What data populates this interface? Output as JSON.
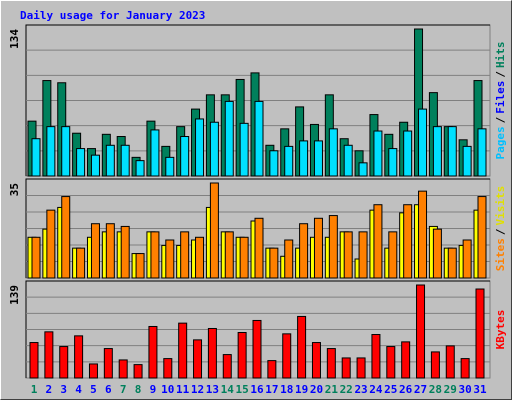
{
  "chart_data": [
    {
      "type": "bar",
      "title": "Daily usage for January 2023",
      "ylim": [
        0,
        134
      ],
      "yticks": [
        134
      ],
      "side_label": [
        {
          "text": "Pages",
          "color": "#00c0ff"
        },
        {
          "text": "/",
          "color": "#000000"
        },
        {
          "text": "Files",
          "color": "#0000ff"
        },
        {
          "text": "/",
          "color": "#000000"
        },
        {
          "text": "Hits",
          "color": "#00805c"
        }
      ],
      "series": [
        {
          "color": "#00805c",
          "values": [
            50,
            87,
            85,
            39,
            25,
            38,
            36,
            17,
            50,
            27,
            45,
            61,
            74,
            74,
            88,
            94,
            28,
            43,
            63,
            47,
            74,
            34,
            23,
            56,
            38,
            49,
            134,
            76,
            45,
            33,
            87
          ]
        },
        {
          "color": "#00e0ff",
          "values": [
            34,
            45,
            45,
            25,
            19,
            28,
            28,
            14,
            42,
            17,
            36,
            52,
            49,
            68,
            48,
            68,
            23,
            27,
            32,
            32,
            43,
            28,
            12,
            41,
            25,
            41,
            61,
            45,
            45,
            27,
            43
          ]
        }
      ]
    },
    {
      "type": "bar",
      "ylim": [
        0,
        35
      ],
      "yticks": [
        35
      ],
      "side_label": [
        {
          "text": "Sites",
          "color": "#ff8000"
        },
        {
          "text": "/",
          "color": "#000000"
        },
        {
          "text": "Visits",
          "color": "#e0e000"
        }
      ],
      "series": [
        {
          "color": "#ffff00",
          "values": [
            15,
            18,
            26,
            11,
            15,
            17,
            17,
            9,
            17,
            12,
            12,
            14,
            26,
            17,
            15,
            21,
            11,
            8,
            11,
            15,
            15,
            17,
            7,
            25,
            11,
            24,
            27,
            19,
            11,
            12,
            25
          ]
        },
        {
          "color": "#ff8000",
          "values": [
            15,
            25,
            30,
            11,
            20,
            20,
            19,
            9,
            17,
            14,
            17,
            15,
            35,
            17,
            15,
            22,
            11,
            14,
            20,
            22,
            23,
            17,
            17,
            27,
            17,
            27,
            32,
            18,
            11,
            14,
            30
          ]
        }
      ]
    },
    {
      "type": "bar",
      "ylim": [
        0,
        139
      ],
      "yticks": [
        139
      ],
      "side_label": [
        {
          "text": "KBytes",
          "color": "#ff0000"
        }
      ],
      "categories": [
        "1",
        "2",
        "3",
        "4",
        "5",
        "6",
        "7",
        "8",
        "9",
        "10",
        "11",
        "12",
        "13",
        "14",
        "15",
        "16",
        "17",
        "18",
        "19",
        "20",
        "21",
        "22",
        "23",
        "24",
        "25",
        "26",
        "27",
        "28",
        "29",
        "30",
        "31"
      ],
      "category_colors": [
        "#00805c",
        "#0000ff",
        "#0000ff",
        "#0000ff",
        "#0000ff",
        "#0000ff",
        "#00805c",
        "#00805c",
        "#0000ff",
        "#0000ff",
        "#0000ff",
        "#0000ff",
        "#0000ff",
        "#00805c",
        "#00805c",
        "#0000ff",
        "#0000ff",
        "#0000ff",
        "#0000ff",
        "#0000ff",
        "#00805c",
        "#00805c",
        "#0000ff",
        "#0000ff",
        "#0000ff",
        "#0000ff",
        "#0000ff",
        "#00805c",
        "#00805c",
        "#0000ff",
        "#0000ff"
      ],
      "series": [
        {
          "color": "#ff0000",
          "values": [
            53,
            69,
            47,
            63,
            21,
            44,
            27,
            20,
            77,
            29,
            82,
            57,
            74,
            35,
            68,
            86,
            26,
            66,
            92,
            53,
            44,
            30,
            30,
            65,
            47,
            54,
            139,
            39,
            48,
            29,
            133
          ]
        }
      ]
    }
  ]
}
